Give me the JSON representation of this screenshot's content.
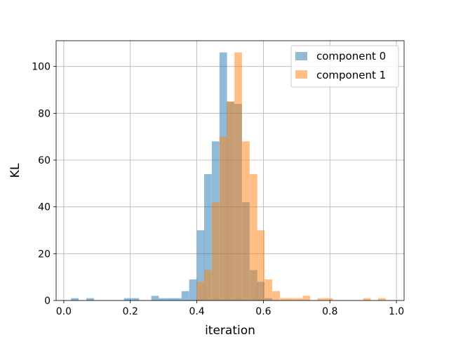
{
  "chart_data": {
    "type": "bar",
    "title": "",
    "xlabel": "iteration",
    "ylabel": "KL",
    "xlim": [
      -0.023,
      1.023
    ],
    "ylim": [
      0,
      111
    ],
    "xticks": [
      "0.0",
      "0.2",
      "0.4",
      "0.6",
      "0.8",
      "1.0"
    ],
    "yticks": [
      "0",
      "20",
      "40",
      "60",
      "80",
      "100"
    ],
    "grid": true,
    "legend_position": "top-right",
    "bin_width": 0.0227,
    "series": [
      {
        "name": "component 0",
        "color": "#1f77b4",
        "opacity": 0.5,
        "bins": [
          {
            "x": 0.022,
            "y": 1
          },
          {
            "x": 0.068,
            "y": 1
          },
          {
            "x": 0.181,
            "y": 1
          },
          {
            "x": 0.204,
            "y": 1
          },
          {
            "x": 0.263,
            "y": 2
          },
          {
            "x": 0.286,
            "y": 1
          },
          {
            "x": 0.309,
            "y": 1
          },
          {
            "x": 0.331,
            "y": 1
          },
          {
            "x": 0.354,
            "y": 4
          },
          {
            "x": 0.377,
            "y": 9
          },
          {
            "x": 0.4,
            "y": 30
          },
          {
            "x": 0.422,
            "y": 54
          },
          {
            "x": 0.445,
            "y": 68
          },
          {
            "x": 0.468,
            "y": 106
          },
          {
            "x": 0.49,
            "y": 85
          },
          {
            "x": 0.513,
            "y": 84
          },
          {
            "x": 0.536,
            "y": 42
          },
          {
            "x": 0.559,
            "y": 13
          },
          {
            "x": 0.581,
            "y": 8
          },
          {
            "x": 0.604,
            "y": 1
          }
        ]
      },
      {
        "name": "component 1",
        "color": "#ff7f0e",
        "opacity": 0.5,
        "bins": [
          {
            "x": 0.4,
            "y": 8
          },
          {
            "x": 0.422,
            "y": 13
          },
          {
            "x": 0.445,
            "y": 42
          },
          {
            "x": 0.468,
            "y": 70
          },
          {
            "x": 0.49,
            "y": 85
          },
          {
            "x": 0.513,
            "y": 106
          },
          {
            "x": 0.536,
            "y": 68
          },
          {
            "x": 0.559,
            "y": 54
          },
          {
            "x": 0.581,
            "y": 30
          },
          {
            "x": 0.604,
            "y": 9
          },
          {
            "x": 0.627,
            "y": 4
          },
          {
            "x": 0.65,
            "y": 1
          },
          {
            "x": 0.672,
            "y": 1
          },
          {
            "x": 0.695,
            "y": 1
          },
          {
            "x": 0.718,
            "y": 2
          },
          {
            "x": 0.763,
            "y": 1
          },
          {
            "x": 0.786,
            "y": 1
          },
          {
            "x": 0.9,
            "y": 1
          },
          {
            "x": 0.945,
            "y": 1
          }
        ]
      }
    ]
  }
}
